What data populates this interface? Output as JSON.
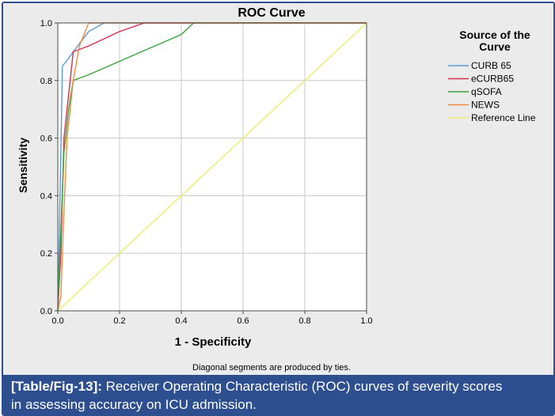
{
  "chart_data": {
    "type": "line",
    "title": "ROC Curve",
    "xlabel": "1 - Specificity",
    "ylabel": "Sensitivity",
    "xlim": [
      0,
      1
    ],
    "ylim": [
      0,
      1
    ],
    "xticks": [
      "0.0",
      "0.2",
      "0.4",
      "0.6",
      "0.8",
      "1.0"
    ],
    "yticks": [
      "0.0",
      "0.2",
      "0.4",
      "0.6",
      "0.8",
      "1.0"
    ],
    "grid": true,
    "legend_position": "right",
    "legend_title": [
      "Source of the",
      "Curve"
    ],
    "note": "Diagonal segments are produced by ties.",
    "series": [
      {
        "name": "CURB 65",
        "color": "#5b9bd5",
        "points": [
          [
            0,
            0
          ],
          [
            0.01,
            0.55
          ],
          [
            0.015,
            0.85
          ],
          [
            0.03,
            0.87
          ],
          [
            0.05,
            0.9
          ],
          [
            0.1,
            0.97
          ],
          [
            0.15,
            1.0
          ],
          [
            1.0,
            1.0
          ]
        ]
      },
      {
        "name": "eCURB65",
        "color": "#d62d4b",
        "points": [
          [
            0,
            0
          ],
          [
            0.01,
            0.2
          ],
          [
            0.015,
            0.4
          ],
          [
            0.02,
            0.6
          ],
          [
            0.05,
            0.9
          ],
          [
            0.1,
            0.92
          ],
          [
            0.2,
            0.97
          ],
          [
            0.28,
            1.0
          ],
          [
            1.0,
            1.0
          ]
        ]
      },
      {
        "name": "qSOFA",
        "color": "#3aa23a",
        "points": [
          [
            0,
            0
          ],
          [
            0.005,
            0.15
          ],
          [
            0.02,
            0.55
          ],
          [
            0.035,
            0.7
          ],
          [
            0.05,
            0.8
          ],
          [
            0.1,
            0.82
          ],
          [
            0.25,
            0.89
          ],
          [
            0.4,
            0.96
          ],
          [
            0.44,
            1.0
          ],
          [
            1.0,
            1.0
          ]
        ]
      },
      {
        "name": "NEWS",
        "color": "#f08a3c",
        "points": [
          [
            0,
            0
          ],
          [
            0.01,
            0.05
          ],
          [
            0.02,
            0.35
          ],
          [
            0.03,
            0.6
          ],
          [
            0.05,
            0.8
          ],
          [
            0.07,
            0.92
          ],
          [
            0.1,
            1.0
          ],
          [
            1.0,
            1.0
          ]
        ]
      },
      {
        "name": "Reference Line",
        "color": "#eded6b",
        "points": [
          [
            0,
            0
          ],
          [
            1,
            1
          ]
        ]
      }
    ]
  },
  "caption": {
    "label": "[Table/Fig-13]:",
    "text": "Receiver Operating Characteristic (ROC) curves of severity scores",
    "text2": "in assessing accuracy on ICU admission."
  }
}
